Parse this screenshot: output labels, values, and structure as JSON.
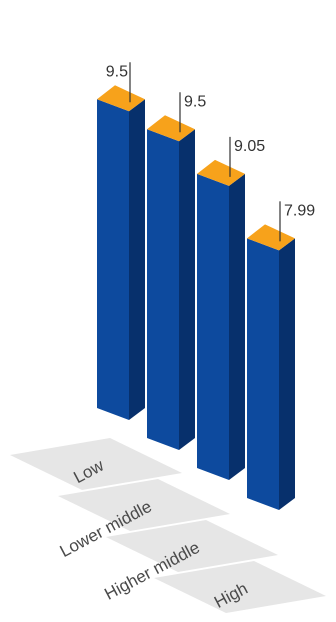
{
  "chart_data": {
    "type": "bar",
    "style": "3d-isometric",
    "categories": [
      "Low",
      "Lower middle",
      "Higher middle",
      "High"
    ],
    "values": [
      9.5,
      9.5,
      9.05,
      7.99
    ],
    "value_labels": [
      "9.5",
      "9.5",
      "9.05",
      "7.99"
    ],
    "title": "",
    "xlabel": "",
    "ylabel": "",
    "ylim": [
      0,
      10
    ],
    "grid": false,
    "legend": "none"
  },
  "colors": {
    "bar_front": "#0d4a9e",
    "bar_side": "#07306c",
    "bar_top": "#f7a21b",
    "label_band": "#e6e6e6",
    "label_text": "#4a4a4a",
    "value_text": "#333333",
    "leader_line": "#333333"
  }
}
